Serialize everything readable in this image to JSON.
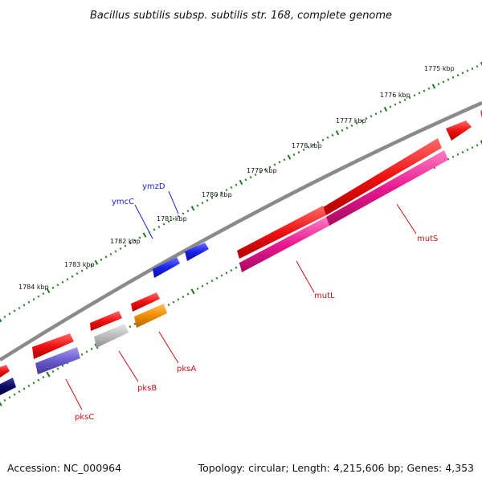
{
  "title": "Bacillus subtilis subsp. subtilis str. 168, complete genome",
  "footer": {
    "accession": "Accession: NC_000964",
    "topology": "Topology: circular; Length: 4,215,606 bp; Genes: 4,353"
  },
  "ticks": [
    "1775 kbp",
    "1776 kbp",
    "1777 kbp",
    "1778 kbp",
    "1779 kbp",
    "1780 kbp",
    "1781 kbp",
    "1782 kbp",
    "1783 kbp",
    "1784 kbp"
  ],
  "genes": [
    {
      "label": "ymzD",
      "color": "#1a22dd"
    },
    {
      "label": "ymcC",
      "color": "#1a22dd"
    },
    {
      "label": "mutS",
      "color": "#cc1111"
    },
    {
      "label": "mutL",
      "color": "#cc1111"
    },
    {
      "label": "pksA",
      "color": "#cc1111"
    },
    {
      "label": "pksB",
      "color": "#cc1111"
    },
    {
      "label": "pksC",
      "color": "#cc1111"
    }
  ],
  "colors": {
    "backbone": "#8a8a8a",
    "tick": "#1f7a1f",
    "cds_forward": "#ee1111",
    "cds_magenta": "#e8188f",
    "cds_blue": "#1a22ee",
    "cds_gray": "#bbbbbb",
    "cds_orange": "#f08c00",
    "cds_purple": "#6a5acd",
    "cds_navy": "#0b0b66"
  }
}
